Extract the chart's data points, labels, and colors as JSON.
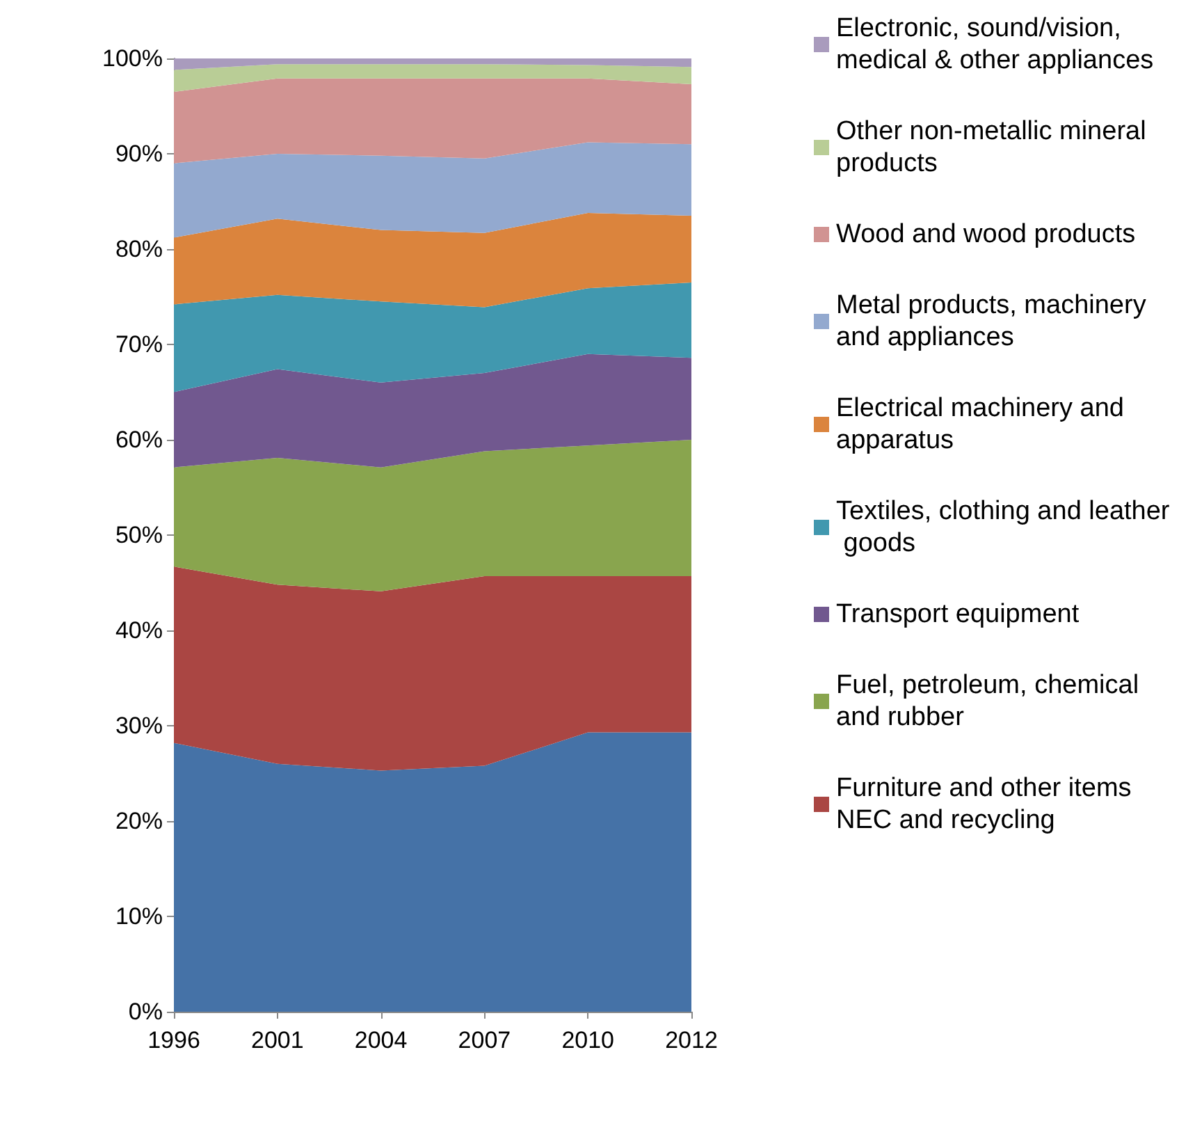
{
  "chart_data": {
    "type": "area",
    "stacked": true,
    "categories": [
      "1996",
      "2001",
      "2004",
      "2007",
      "2010",
      "2012"
    ],
    "ylim": [
      0,
      100
    ],
    "yticks": [
      {
        "value": 0,
        "label": "0%"
      },
      {
        "value": 10,
        "label": "10%"
      },
      {
        "value": 20,
        "label": "20%"
      },
      {
        "value": 30,
        "label": "30%"
      },
      {
        "value": 40,
        "label": "40%"
      },
      {
        "value": 50,
        "label": "50%"
      },
      {
        "value": 60,
        "label": "60%"
      },
      {
        "value": 70,
        "label": "70%"
      },
      {
        "value": 80,
        "label": "80%"
      },
      {
        "value": 90,
        "label": "90%"
      },
      {
        "value": 100,
        "label": "100%"
      }
    ],
    "grid": false,
    "legend": "right",
    "series": [
      {
        "color": "#4572a7",
        "values": [
          28.2,
          26,
          25.3,
          25.8,
          29.3,
          29.3
        ]
      },
      {
        "name": "Furniture and other items NEC and recycling",
        "color": "#aa4643",
        "values": [
          18.5,
          18.8,
          18.8,
          19.9,
          16.4,
          16.4
        ]
      },
      {
        "name": "Fuel, petroleum, chemical and rubber",
        "color": "#89a54e",
        "values": [
          10.4,
          13.3,
          13,
          13.1,
          13.7,
          14.3
        ]
      },
      {
        "name": "Transport equipment",
        "color": "#71588f",
        "values": [
          7.9,
          9.3,
          8.9,
          8.2,
          9.6,
          8.6
        ]
      },
      {
        "name": "Textiles, clothing and leather goods",
        "color": "#4198af",
        "values": [
          9.2,
          7.8,
          8.5,
          6.9,
          6.9,
          7.9
        ]
      },
      {
        "name": "Electrical machinery and apparatus",
        "color": "#db843d",
        "values": [
          7,
          8,
          7.5,
          7.8,
          7.9,
          7
        ]
      },
      {
        "name": "Metal products, machinery and appliances",
        "color": "#93a9cf",
        "values": [
          7.8,
          6.8,
          7.8,
          7.8,
          7.4,
          7.5
        ]
      },
      {
        "name": "Wood and wood products",
        "color": "#d19392",
        "values": [
          7.5,
          7.9,
          8.1,
          8.4,
          6.7,
          6.3
        ]
      },
      {
        "name": "Other non-metallic mineral products",
        "color": "#b9cd96",
        "values": [
          2.3,
          1.5,
          1.5,
          1.5,
          1.4,
          1.8
        ]
      },
      {
        "name": "Electronic, sound/vision, medical & other appliances",
        "color": "#a99bbd",
        "values": [
          1.2,
          0.6,
          0.6,
          0.6,
          0.7,
          0.9
        ]
      }
    ]
  }
}
